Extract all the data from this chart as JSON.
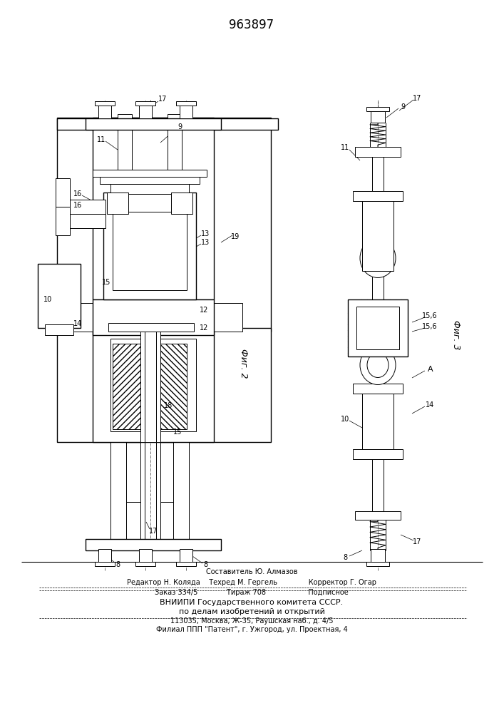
{
  "title": "963897",
  "background_color": "#ffffff",
  "fig2_label": "Фиг. 2",
  "fig3_label": "Фиг. 3",
  "footer_lines": [
    "Составитель Ю. Алмазов",
    "Редактор Н. Коляда    Техред М. Гергель              Корректор Г. Огар",
    "Заказ 334/5             Тираж 708                   Подписное",
    "ВНИИПИ Государственного комитета СССР.",
    "по делам изобретений и открытий",
    "113035, Москва, Ж-35, Раушская наб., д. 4/5",
    "Филиал ППП \"Патент\", г. Ужгород, ул. Проектная, 4"
  ]
}
